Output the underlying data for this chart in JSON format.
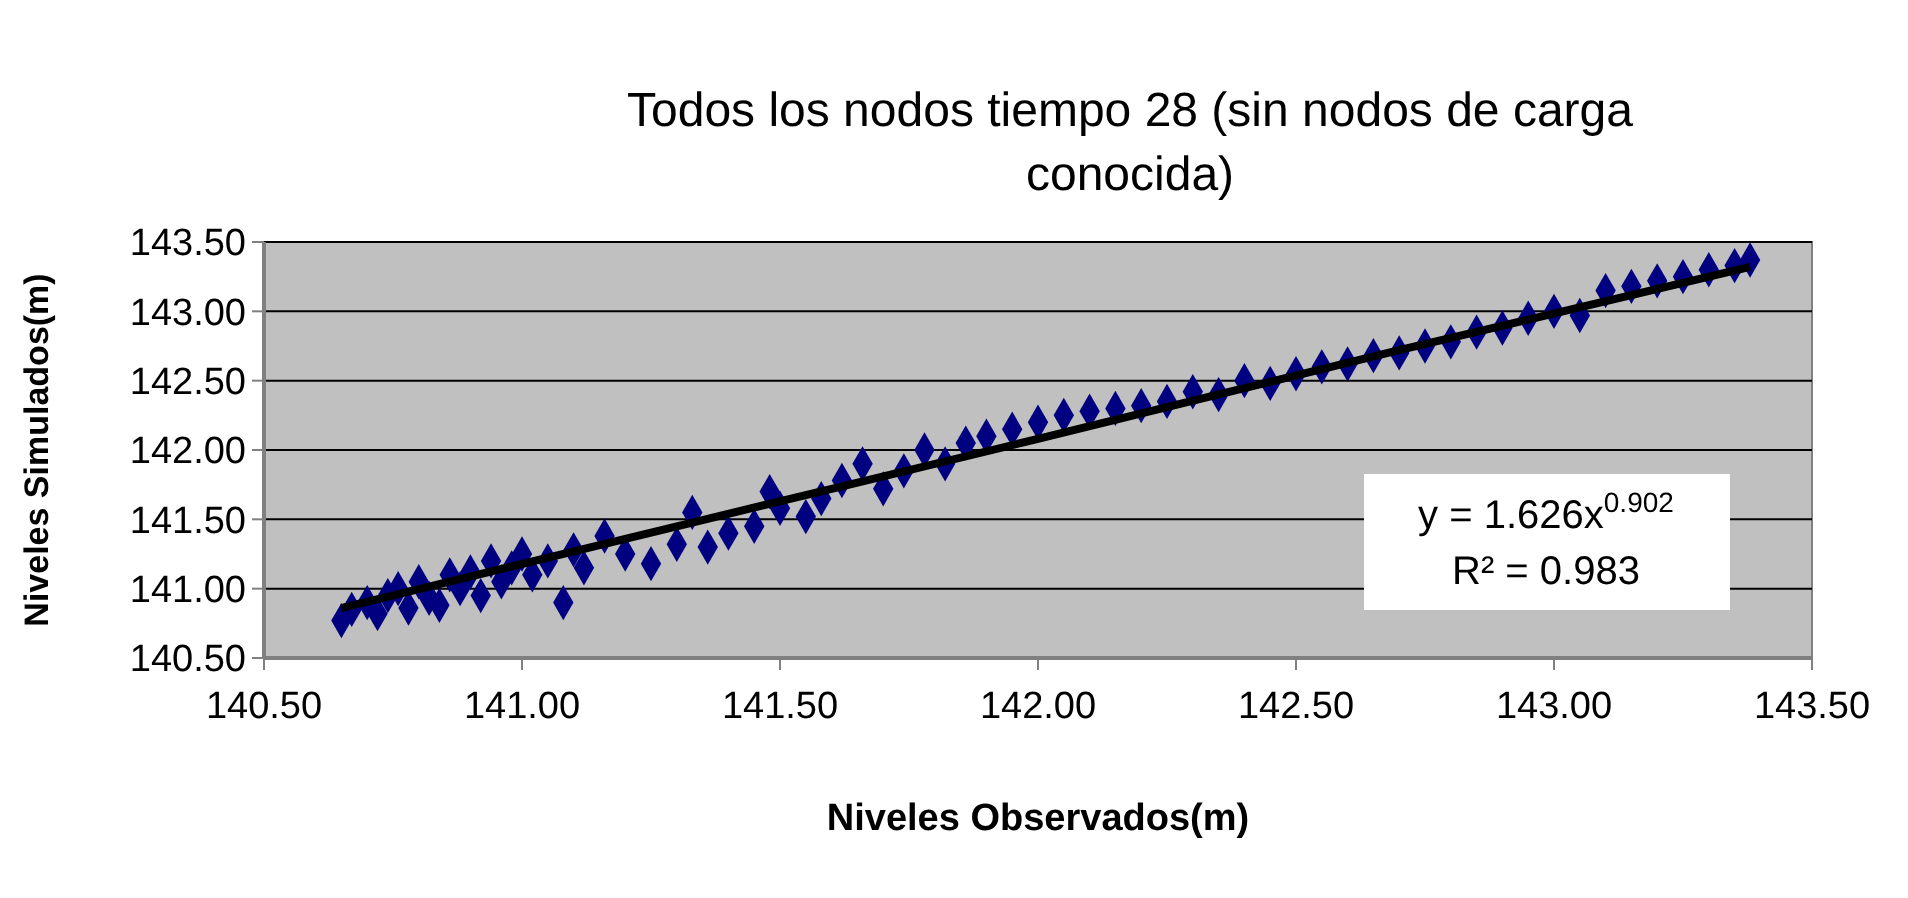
{
  "chart_data": {
    "type": "scatter",
    "title": "Todos los nodos tiempo 28 (sin nodos de carga conocida)",
    "xlabel": "Niveles Observados(m)",
    "ylabel": "Niveles Simulados(m)",
    "xlim": [
      140.5,
      143.5
    ],
    "ylim": [
      140.5,
      143.5
    ],
    "xticks": [
      {
        "value": 140.5,
        "label": "140.50"
      },
      {
        "value": 141,
        "label": "141.00"
      },
      {
        "value": 141.5,
        "label": "141.50"
      },
      {
        "value": 142,
        "label": "142.00"
      },
      {
        "value": 142.5,
        "label": "142.50"
      },
      {
        "value": 143,
        "label": "143.00"
      },
      {
        "value": 143.5,
        "label": "143.50"
      }
    ],
    "yticks": [
      {
        "value": 140.5,
        "label": "140.50"
      },
      {
        "value": 141,
        "label": "141.00"
      },
      {
        "value": 141.5,
        "label": "141.50"
      },
      {
        "value": 142,
        "label": "142.00"
      },
      {
        "value": 142.5,
        "label": "142.50"
      },
      {
        "value": 143,
        "label": "143.00"
      },
      {
        "value": 143.5,
        "label": "143.50"
      }
    ],
    "grid": "y",
    "annotations": [
      "y = 1.626x$^{0.902}$",
      "R² = 0.983"
    ],
    "series": [
      {
        "marker": "diamond",
        "color": "#000080",
        "x": [
          140.65,
          140.67,
          140.7,
          140.72,
          140.74,
          140.76,
          140.78,
          140.8,
          140.82,
          140.84,
          140.86,
          140.88,
          140.9,
          140.92,
          140.94,
          140.96,
          140.98,
          141,
          141.02,
          141.05,
          141.08,
          141.1,
          141.12,
          141.16,
          141.2,
          141.25,
          141.3,
          141.33,
          141.36,
          141.4,
          141.45,
          141.5,
          141.48,
          141.55,
          141.58,
          141.62,
          141.66,
          141.7,
          141.74,
          141.78,
          141.82,
          141.86,
          141.9,
          141.95,
          142,
          142.05,
          142.1,
          142.15,
          142.2,
          142.25,
          142.3,
          142.35,
          142.4,
          142.45,
          142.5,
          142.55,
          142.6,
          142.65,
          142.7,
          142.75,
          142.8,
          142.85,
          142.9,
          142.95,
          143,
          143.05,
          143.1,
          143.15,
          143.2,
          143.25,
          143.3,
          143.35,
          143.38
        ],
        "values": [
          140.77,
          140.85,
          140.9,
          140.82,
          140.95,
          141,
          140.86,
          141.05,
          140.93,
          140.88,
          141.1,
          141,
          141.12,
          140.95,
          141.2,
          141.05,
          141.15,
          141.25,
          141.1,
          141.2,
          140.9,
          141.28,
          141.15,
          141.38,
          141.25,
          141.18,
          141.32,
          141.55,
          141.3,
          141.4,
          141.45,
          141.58,
          141.7,
          141.52,
          141.65,
          141.78,
          141.9,
          141.72,
          141.85,
          142,
          141.9,
          142.05,
          142.1,
          142.15,
          142.2,
          142.25,
          142.28,
          142.3,
          142.32,
          142.35,
          142.42,
          142.4,
          142.5,
          142.48,
          142.55,
          142.6,
          142.62,
          142.68,
          142.7,
          142.75,
          142.78,
          142.85,
          142.88,
          142.95,
          143,
          142.97,
          143.15,
          143.18,
          143.22,
          143.25,
          143.3,
          143.33,
          143.37
        ]
      },
      {
        "type": "line",
        "color": "#000000",
        "x": [
          140.65,
          141.3,
          142,
          142.7,
          143.38
        ],
        "values": [
          140.86,
          141.45,
          142.08,
          142.72,
          143.32
        ]
      }
    ]
  }
}
